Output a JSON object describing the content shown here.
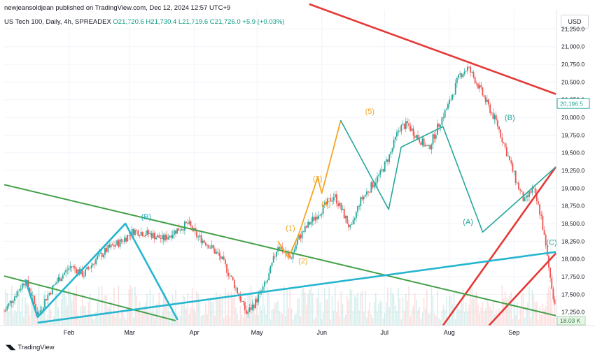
{
  "header": {
    "published": "newjeansoldjean published on TradingView.com, Dec 12, 2024 12:57 UTC+9",
    "symbol": "US Tech 100, Daily, 4h, SPREADEX",
    "ohlc": "O21,720.6  H21,730.4  L21,719.6  C21,726.0  +5.9 (+0.03%)"
  },
  "currency_button": "USD",
  "footer_brand": "TradingView",
  "colors": {
    "up": "#26a69a",
    "down": "#ef5350",
    "red_line": "#e53935",
    "green_line": "#43a047",
    "blue_line": "#26b5cf",
    "orange_wave": "#f5a623",
    "teal_wave": "#26a69a"
  },
  "chart_data": {
    "type": "candlestick",
    "instrument": "US Tech 100",
    "interval": "4h",
    "y_axis": {
      "ticks": [
        "21,250.0",
        "21,000.0",
        "20,750.0",
        "20,500.0",
        "20,250.0",
        "20,000.0",
        "19,750.0",
        "19,500.0",
        "19,250.0",
        "19,000.0",
        "18,750.0",
        "18,500.0",
        "18,250.0",
        "18,000.0",
        "17,750.0",
        "17,500.0",
        "17,250.0"
      ],
      "range": [
        17060,
        21520
      ]
    },
    "x_axis": {
      "ticks": [
        "Feb",
        "Mar",
        "Apr",
        "May",
        "Jun",
        "Jul",
        "Aug",
        "Sep"
      ],
      "tick_days": [
        31,
        60,
        91,
        121,
        152,
        182,
        213,
        244
      ],
      "range_days": [
        0,
        264
      ]
    },
    "last_price": "20,196.5",
    "volume_label": "18.03 K",
    "price_anchors": [
      [
        0,
        17260
      ],
      [
        5,
        17480
      ],
      [
        10,
        17700
      ],
      [
        13,
        17500
      ],
      [
        16,
        17200
      ],
      [
        20,
        17450
      ],
      [
        26,
        17720
      ],
      [
        32,
        17900
      ],
      [
        38,
        17780
      ],
      [
        44,
        18000
      ],
      [
        50,
        18150
      ],
      [
        56,
        18250
      ],
      [
        62,
        18400
      ],
      [
        70,
        18350
      ],
      [
        76,
        18280
      ],
      [
        82,
        18400
      ],
      [
        88,
        18500
      ],
      [
        92,
        18330
      ],
      [
        98,
        18200
      ],
      [
        104,
        18000
      ],
      [
        110,
        17650
      ],
      [
        116,
        17230
      ],
      [
        120,
        17380
      ],
      [
        126,
        17700
      ],
      [
        131,
        18200
      ],
      [
        134,
        18100
      ],
      [
        137,
        18000
      ],
      [
        141,
        18300
      ],
      [
        146,
        18500
      ],
      [
        152,
        18700
      ],
      [
        158,
        18900
      ],
      [
        163,
        18600
      ],
      [
        166,
        18400
      ],
      [
        170,
        18800
      ],
      [
        175,
        19000
      ],
      [
        180,
        19200
      ],
      [
        185,
        19500
      ],
      [
        189,
        19850
      ],
      [
        193,
        19900
      ],
      [
        197,
        19750
      ],
      [
        203,
        19550
      ],
      [
        208,
        19900
      ],
      [
        213,
        20200
      ],
      [
        218,
        20600
      ],
      [
        222,
        20700
      ],
      [
        226,
        20500
      ],
      [
        231,
        20200
      ],
      [
        236,
        19900
      ],
      [
        240,
        19550
      ],
      [
        245,
        19100
      ],
      [
        249,
        18800
      ],
      [
        253,
        19000
      ],
      [
        257,
        18600
      ],
      [
        261,
        17800
      ],
      [
        264,
        17280
      ]
    ],
    "wave_labels": [
      {
        "text": "(B)",
        "day": 68,
        "price": 18560,
        "color": "teal"
      },
      {
        "text": "(1)",
        "day": 137,
        "price": 18400,
        "color": "orange"
      },
      {
        "text": "(2)",
        "day": 143,
        "price": 17940,
        "color": "orange"
      },
      {
        "text": "(3)",
        "day": 150,
        "price": 19100,
        "color": "orange"
      },
      {
        "text": "(4)",
        "day": 154,
        "price": 18740,
        "color": "orange"
      },
      {
        "text": "(5)",
        "day": 175,
        "price": 20050,
        "color": "orange"
      },
      {
        "text": "(A)",
        "day": 222,
        "price": 18490,
        "color": "teal"
      },
      {
        "text": "(B)",
        "day": 242,
        "price": 19960,
        "color": "teal"
      },
      {
        "text": "(C)",
        "day": 262,
        "price": 18200,
        "color": "teal"
      }
    ]
  }
}
